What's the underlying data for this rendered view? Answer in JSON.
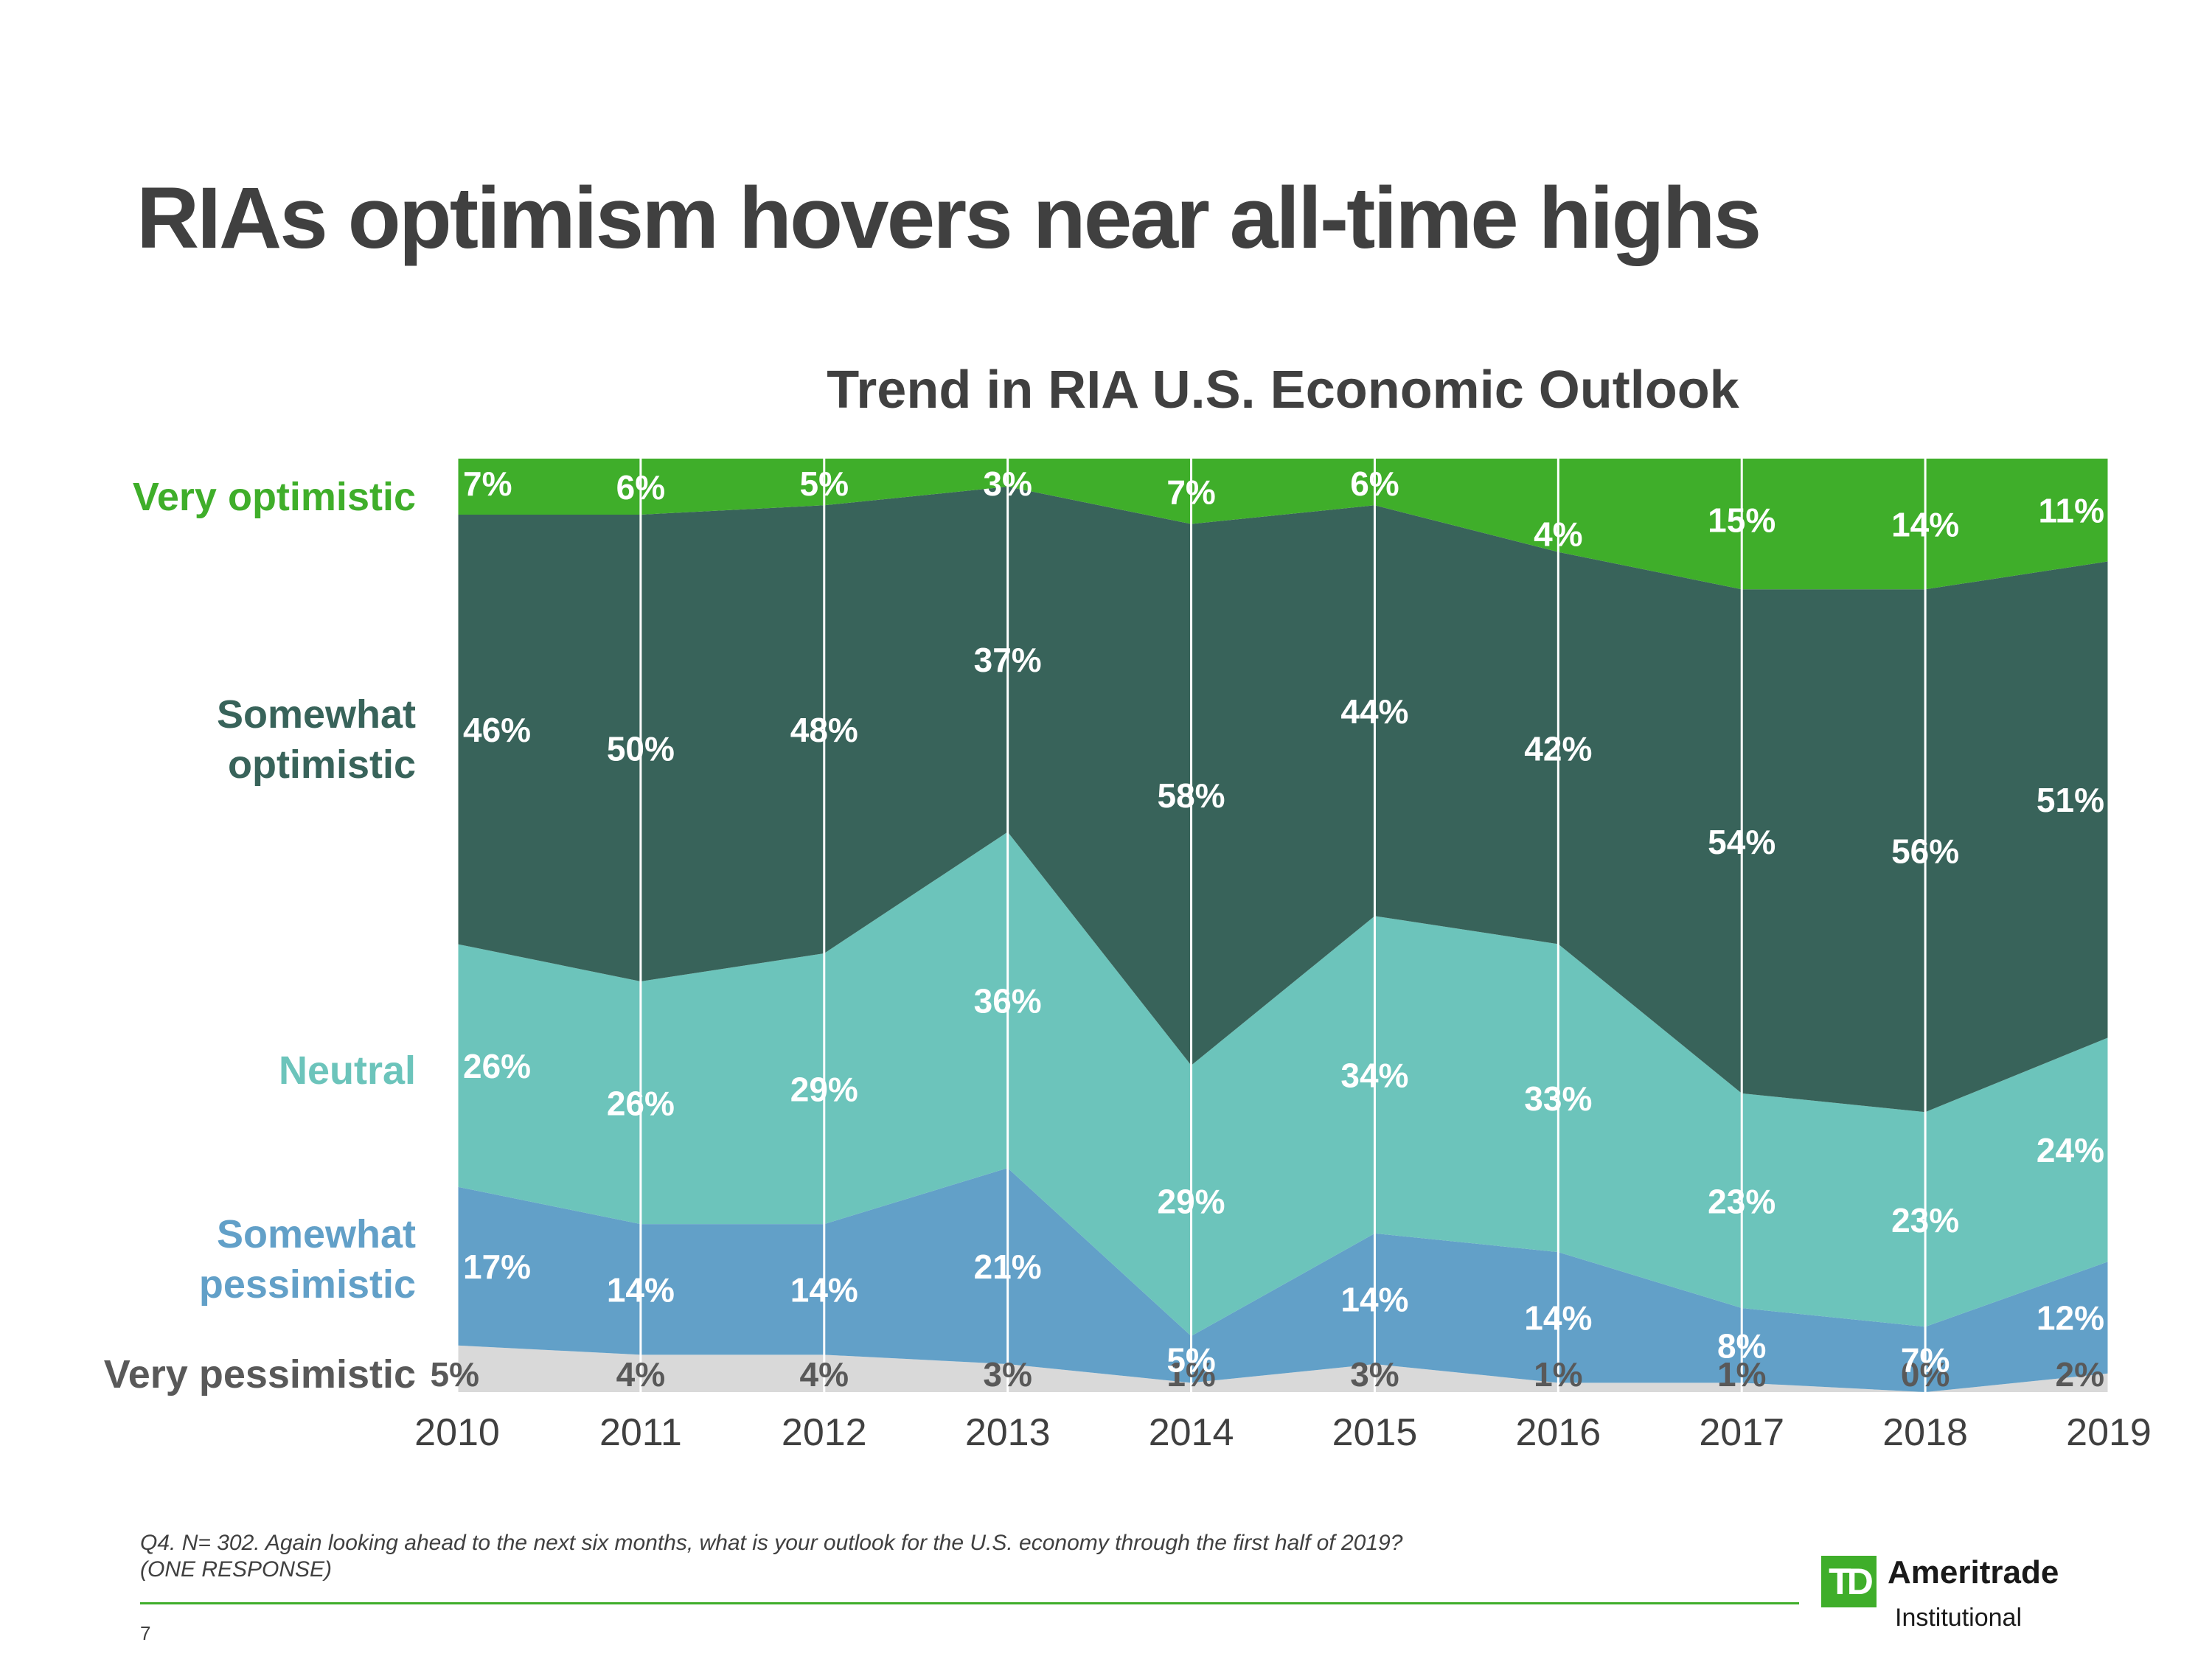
{
  "slide": {
    "title": "RIAs optimism hovers near all-time highs",
    "page_number": "7"
  },
  "category_labels": [
    {
      "key": "very_optimistic",
      "lines": [
        "Very optimistic"
      ],
      "color": "#3fae2a"
    },
    {
      "key": "somewhat_optimistic",
      "lines": [
        "Somewhat",
        "optimistic"
      ],
      "color": "#38635a"
    },
    {
      "key": "neutral",
      "lines": [
        "Neutral"
      ],
      "color": "#6cc4bb"
    },
    {
      "key": "somewhat_pessimistic",
      "lines": [
        "Somewhat",
        "pessimistic"
      ],
      "color": "#62a0c8"
    },
    {
      "key": "very_pessimistic",
      "lines": [
        "Very pessimistic"
      ],
      "color": "#595959"
    }
  ],
  "chart_data": {
    "type": "area",
    "stacked": true,
    "normalized_percent": true,
    "title": "Trend in RIA U.S. Economic Outlook",
    "x": [
      "2010",
      "2011",
      "2012",
      "2013",
      "2014",
      "2015",
      "2016",
      "2017",
      "2018",
      "2019"
    ],
    "ylim": [
      0,
      100
    ],
    "grid": "vertical lines at each year",
    "series": [
      {
        "name": "Very pessimistic",
        "color": "#d9d9d9",
        "label_color": "#595959",
        "values": [
          5,
          4,
          4,
          3,
          1,
          3,
          1,
          1,
          0,
          2
        ]
      },
      {
        "name": "Somewhat pessimistic",
        "color": "#62a0c8",
        "label_color": "#ffffff",
        "values": [
          17,
          14,
          14,
          21,
          5,
          14,
          14,
          8,
          7,
          12
        ]
      },
      {
        "name": "Neutral",
        "color": "#6cc4bb",
        "label_color": "#ffffff",
        "values": [
          26,
          26,
          29,
          36,
          29,
          34,
          33,
          23,
          23,
          24
        ]
      },
      {
        "name": "Somewhat optimistic",
        "color": "#38635a",
        "label_color": "#ffffff",
        "values": [
          46,
          50,
          48,
          37,
          58,
          44,
          42,
          54,
          56,
          51
        ]
      },
      {
        "name": "Very optimistic",
        "color": "#3fae2a",
        "label_color": "#ffffff",
        "values": [
          7,
          6,
          5,
          3,
          7,
          6,
          4,
          15,
          14,
          11
        ]
      }
    ]
  },
  "footnote": {
    "line1": "Q4. N= 302. Again looking ahead to the next six months, what is your outlook for the U.S. economy through the first half of 2019?",
    "line2": "(ONE RESPONSE)"
  },
  "logo": {
    "mark": "TD",
    "name": "Ameritrade",
    "subtitle": "Institutional"
  }
}
